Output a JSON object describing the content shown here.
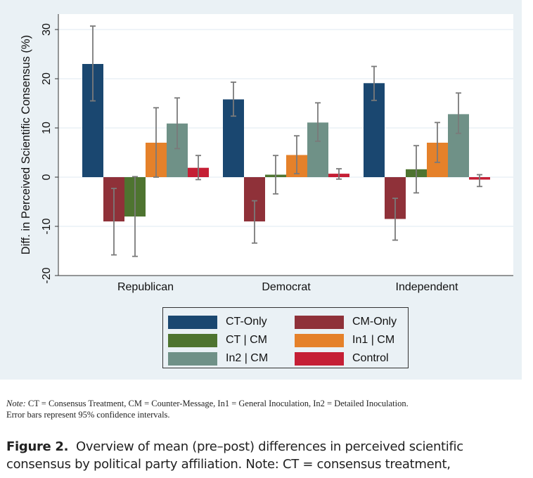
{
  "chart_data": {
    "type": "bar",
    "ylabel": "Diff. in Perceived Scientific Consensus (%)",
    "xlabel": "",
    "ylim": [
      -20,
      33
    ],
    "yticks": [
      -20,
      -10,
      0,
      10,
      20,
      30
    ],
    "grid": true,
    "legend_placement": "bottom",
    "categories": [
      "Republican",
      "Democrat",
      "Independent"
    ],
    "series": [
      {
        "name": "CT-Only",
        "color": "#1a4770",
        "values": [
          23.0,
          15.8,
          19.1
        ],
        "ci_low": [
          15.5,
          12.4,
          15.6
        ],
        "ci_high": [
          30.7,
          19.3,
          22.5
        ]
      },
      {
        "name": "CM-Only",
        "color": "#8f3139",
        "values": [
          -9.0,
          -9.0,
          -8.5
        ],
        "ci_low": [
          -15.8,
          -13.4,
          -12.8
        ],
        "ci_high": [
          -2.3,
          -4.8,
          -4.3
        ]
      },
      {
        "name": "CT | CM",
        "color": "#4e7430",
        "values": [
          -8.0,
          0.5,
          1.6
        ],
        "ci_low": [
          -16.1,
          -3.4,
          -3.2
        ],
        "ci_high": [
          0.1,
          4.4,
          6.4
        ]
      },
      {
        "name": "In1 | CM",
        "color": "#e5812a",
        "values": [
          7.0,
          4.5,
          7.0
        ],
        "ci_low": [
          0.0,
          0.7,
          3.0
        ],
        "ci_high": [
          14.1,
          8.4,
          11.1
        ]
      },
      {
        "name": "In2 | CM",
        "color": "#6f9187",
        "values": [
          10.9,
          11.1,
          12.8
        ],
        "ci_low": [
          5.8,
          7.3,
          8.9
        ],
        "ci_high": [
          16.1,
          15.1,
          17.1
        ]
      },
      {
        "name": "Control",
        "color": "#c51f35",
        "values": [
          1.9,
          0.7,
          -0.5
        ],
        "ci_low": [
          -0.5,
          -0.4,
          -1.9
        ],
        "ci_high": [
          4.4,
          1.7,
          0.5
        ]
      }
    ]
  },
  "note": {
    "label": "Note:",
    "line1": " CT = Consensus Treatment, CM = Counter-Message, In1 = General Inoculation, In2 = Detailed Inoculation.",
    "line2": "Error bars represent 95% confidence intervals."
  },
  "caption": {
    "label": "Figure 2.",
    "line1": "  Overview of mean (pre–post) differences in perceived scientific",
    "line2": "consensus by political party affiliation. Note: CT = consensus treatment,"
  }
}
